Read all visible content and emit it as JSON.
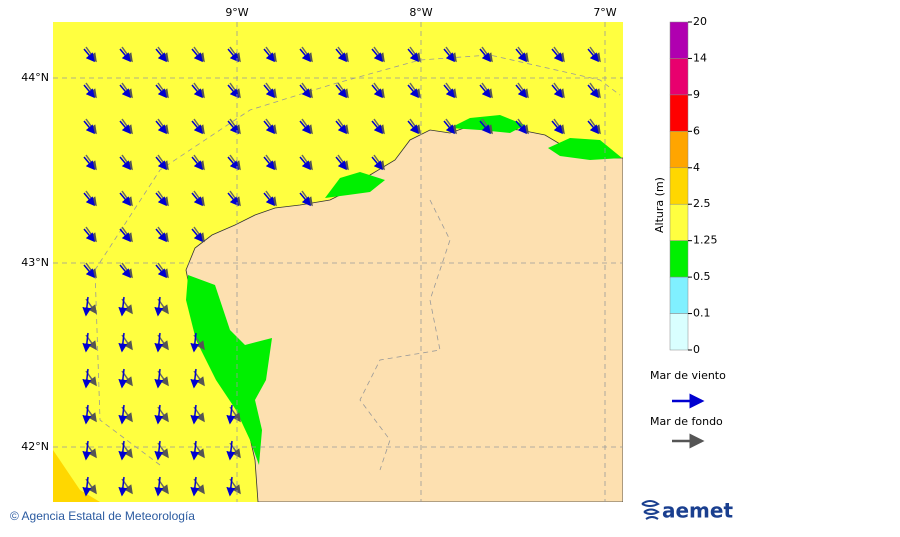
{
  "map": {
    "lon_labels": [
      "9°W",
      "8°W",
      "7°W"
    ],
    "lat_labels": [
      "44°N",
      "43°N",
      "42°N"
    ]
  },
  "colorbar": {
    "title": "Altura (m)",
    "ticks": [
      "20",
      "14",
      "9",
      "6",
      "4",
      "2.5",
      "1.25",
      "0.5",
      "0.1",
      "0"
    ],
    "colors": [
      "#b000b0",
      "#e8006e",
      "#ff0000",
      "#ffa500",
      "#ffd700",
      "#ffff40",
      "#00f000",
      "#80f0ff",
      "#d9ffff"
    ]
  },
  "legend": {
    "wind_sea": "Mar de viento",
    "swell": "Mar de fondo"
  },
  "footer": {
    "credit": "© Agencia Estatal de Meteorología",
    "logo": "aemet"
  }
}
